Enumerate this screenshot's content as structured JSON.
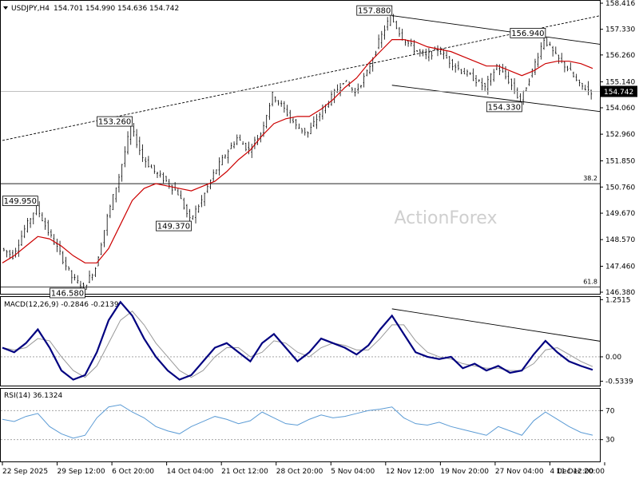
{
  "chart_data": [
    {
      "type": "candlestick",
      "title": "USDJPY,H4",
      "ohlc_header": [
        "154.701",
        "154.990",
        "154.636",
        "154.742"
      ],
      "current_price": 154.742,
      "current_price_label": "154.742",
      "ylim": [
        146.38,
        158.416
      ],
      "y_ticks": [
        "158.416",
        "157.330",
        "156.260",
        "155.140",
        "154.060",
        "152.960",
        "151.850",
        "150.760",
        "149.670",
        "148.570",
        "147.460",
        "146.380"
      ],
      "x_ticks": [
        "22 Sep 2025",
        "29 Sep 12:00",
        "6 Oct 20:00",
        "14 Oct 04:00",
        "21 Oct 12:00",
        "28 Oct 20:00",
        "5 Nov 04:00",
        "12 Nov 12:00",
        "19 Nov 20:00",
        "27 Nov 04:00",
        "4 Dec 12:00",
        "11 Dec 20:00"
      ],
      "watermark": "ActionForex",
      "price_path": [
        148.2,
        147.9,
        149.0,
        149.95,
        148.9,
        148.0,
        147.0,
        146.58,
        147.4,
        149.5,
        151.2,
        153.26,
        152.0,
        151.4,
        151.0,
        150.5,
        149.37,
        150.2,
        151.3,
        152.1,
        152.8,
        152.3,
        153.0,
        154.6,
        154.0,
        153.3,
        153.0,
        153.8,
        154.5,
        155.2,
        154.7,
        155.5,
        156.8,
        157.88,
        157.0,
        156.5,
        156.2,
        156.5,
        156.0,
        155.6,
        155.3,
        154.9,
        155.8,
        155.2,
        154.33,
        155.6,
        156.94,
        156.2,
        155.7,
        155.0,
        154.742
      ],
      "ema_path": [
        147.6,
        147.9,
        148.3,
        148.7,
        148.6,
        148.3,
        147.9,
        147.6,
        147.6,
        148.2,
        149.2,
        150.2,
        150.7,
        150.9,
        150.8,
        150.7,
        150.6,
        150.8,
        151.0,
        151.4,
        151.9,
        152.3,
        152.9,
        153.4,
        153.6,
        153.7,
        153.7,
        154.0,
        154.4,
        154.9,
        155.3,
        155.9,
        156.4,
        156.9,
        156.9,
        156.8,
        156.6,
        156.5,
        156.4,
        156.2,
        156.0,
        155.8,
        155.8,
        155.6,
        155.4,
        155.6,
        155.9,
        156.0,
        156.0,
        155.9,
        155.7
      ],
      "annotations": [
        {
          "text": "157.880",
          "value": 157.88
        },
        {
          "text": "156.940",
          "value": 156.94
        },
        {
          "text": "153.260",
          "value": 153.26
        },
        {
          "text": "154.330",
          "value": 154.33
        },
        {
          "text": "149.950",
          "value": 149.95
        },
        {
          "text": "149.370",
          "value": 149.37
        },
        {
          "text": "146.580",
          "value": 146.58
        }
      ],
      "fib_levels": [
        {
          "label": "38.2",
          "value": 150.9
        },
        {
          "label": "61.8",
          "value": 146.6
        }
      ],
      "trendlines": [
        {
          "name": "dotted-uptrend",
          "style": "dotted",
          "from": [
            0,
            152.7
          ],
          "to": [
            33,
            157.9
          ]
        },
        {
          "name": "channel-upper",
          "style": "solid",
          "from": [
            33,
            157.9
          ],
          "to": [
            50,
            156.7
          ]
        },
        {
          "name": "channel-lower",
          "style": "solid",
          "from": [
            33,
            155.0
          ],
          "to": [
            50,
            153.9
          ]
        }
      ],
      "colors": {
        "candle": "#000000",
        "ema": "#cc0000",
        "trendline": "#000000",
        "price_marker": "#000000"
      }
    },
    {
      "type": "line",
      "title": "MACD(12,26,9) -0.2846 -0.2139",
      "ylim": [
        -0.63,
        1.31
      ],
      "y_ticks": [
        "1.2515",
        "0.00",
        "-0.5339"
      ],
      "macd": [
        0.2,
        0.1,
        0.3,
        0.6,
        0.2,
        -0.3,
        -0.5,
        -0.4,
        0.1,
        0.8,
        1.2,
        0.9,
        0.4,
        0.0,
        -0.3,
        -0.5,
        -0.4,
        -0.1,
        0.2,
        0.3,
        0.1,
        -0.1,
        0.3,
        0.5,
        0.2,
        -0.1,
        0.1,
        0.4,
        0.3,
        0.2,
        0.05,
        0.25,
        0.6,
        0.9,
        0.5,
        0.1,
        0.0,
        -0.05,
        0.0,
        -0.25,
        -0.15,
        -0.3,
        -0.2,
        -0.35,
        -0.3,
        0.05,
        0.35,
        0.1,
        -0.1,
        -0.2,
        -0.2846
      ],
      "signal": [
        0.2,
        0.15,
        0.2,
        0.4,
        0.35,
        0.0,
        -0.3,
        -0.45,
        -0.2,
        0.3,
        0.8,
        1.0,
        0.7,
        0.3,
        0.0,
        -0.3,
        -0.45,
        -0.3,
        0.0,
        0.2,
        0.2,
        0.0,
        0.1,
        0.35,
        0.3,
        0.1,
        0.0,
        0.2,
        0.3,
        0.25,
        0.15,
        0.15,
        0.4,
        0.7,
        0.7,
        0.35,
        0.1,
        0.0,
        -0.05,
        -0.15,
        -0.2,
        -0.25,
        -0.25,
        -0.3,
        -0.3,
        -0.15,
        0.15,
        0.2,
        0.05,
        -0.1,
        -0.2139
      ],
      "trendline": {
        "from": [
          33,
          1.05
        ],
        "to": [
          50,
          0.34
        ]
      },
      "colors": {
        "macd": "#000080",
        "signal": "#999999"
      }
    },
    {
      "type": "line",
      "title": "RSI(14) 36.1324",
      "ylim": [
        0,
        100
      ],
      "y_ticks": [
        "70",
        "30"
      ],
      "levels": [
        70,
        30
      ],
      "rsi": [
        58,
        55,
        62,
        66,
        48,
        38,
        32,
        36,
        60,
        75,
        78,
        68,
        60,
        48,
        42,
        38,
        48,
        55,
        62,
        58,
        52,
        56,
        68,
        60,
        52,
        50,
        58,
        64,
        60,
        62,
        66,
        70,
        72,
        75,
        60,
        52,
        50,
        54,
        48,
        44,
        40,
        36,
        48,
        42,
        36,
        56,
        68,
        58,
        48,
        40,
        36.13
      ],
      "colors": {
        "rsi": "#5b9bd5",
        "levels": "#999999"
      }
    }
  ]
}
